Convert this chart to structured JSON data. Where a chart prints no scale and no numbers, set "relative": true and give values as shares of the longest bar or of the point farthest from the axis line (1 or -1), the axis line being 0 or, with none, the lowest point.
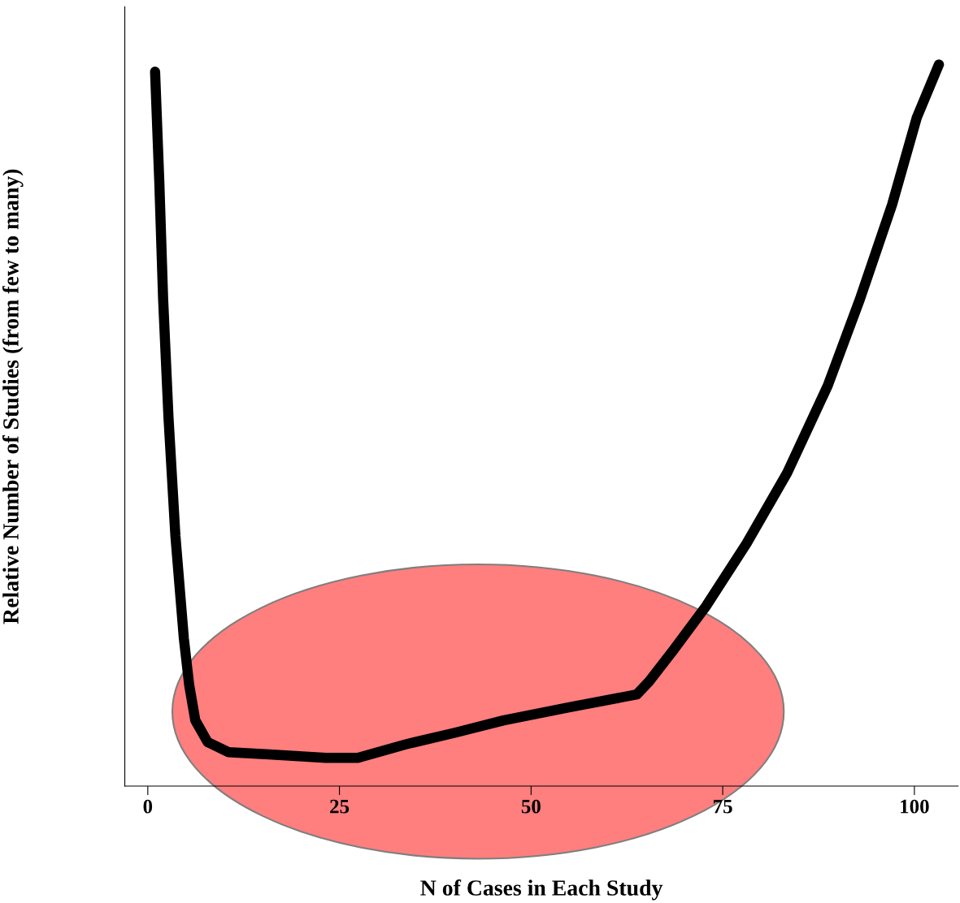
{
  "chart_data": {
    "type": "line",
    "relative": true,
    "xlabel": "N of Cases in Each Study",
    "ylabel": "Relative Number of Studies (from few to many)",
    "xlim": [
      -3,
      105.7
    ],
    "xticks": [
      0,
      25,
      50,
      75,
      100
    ],
    "grid": false,
    "marker": "none",
    "line_style": "solid",
    "x": [
      0.95,
      1.5,
      2.0,
      2.7,
      3.6,
      4.7,
      5.4,
      6.2,
      7.8,
      10.5,
      15.8,
      23.2,
      27.4,
      33.7,
      40.1,
      46.4,
      54.9,
      63.8,
      65.4,
      68.6,
      72.8,
      78.1,
      83.4,
      88.7,
      92.9,
      97.1,
      100.3,
      103.2
    ],
    "series": [
      {
        "color": "#000000",
        "values": [
          0.99,
          0.838,
          0.675,
          0.511,
          0.347,
          0.205,
          0.14,
          0.091,
          0.061,
          0.047,
          0.044,
          0.039,
          0.039,
          0.058,
          0.074,
          0.091,
          0.109,
          0.127,
          0.145,
          0.189,
          0.249,
          0.336,
          0.434,
          0.555,
          0.675,
          0.806,
          0.926,
          1.0
        ]
      }
    ]
  }
}
